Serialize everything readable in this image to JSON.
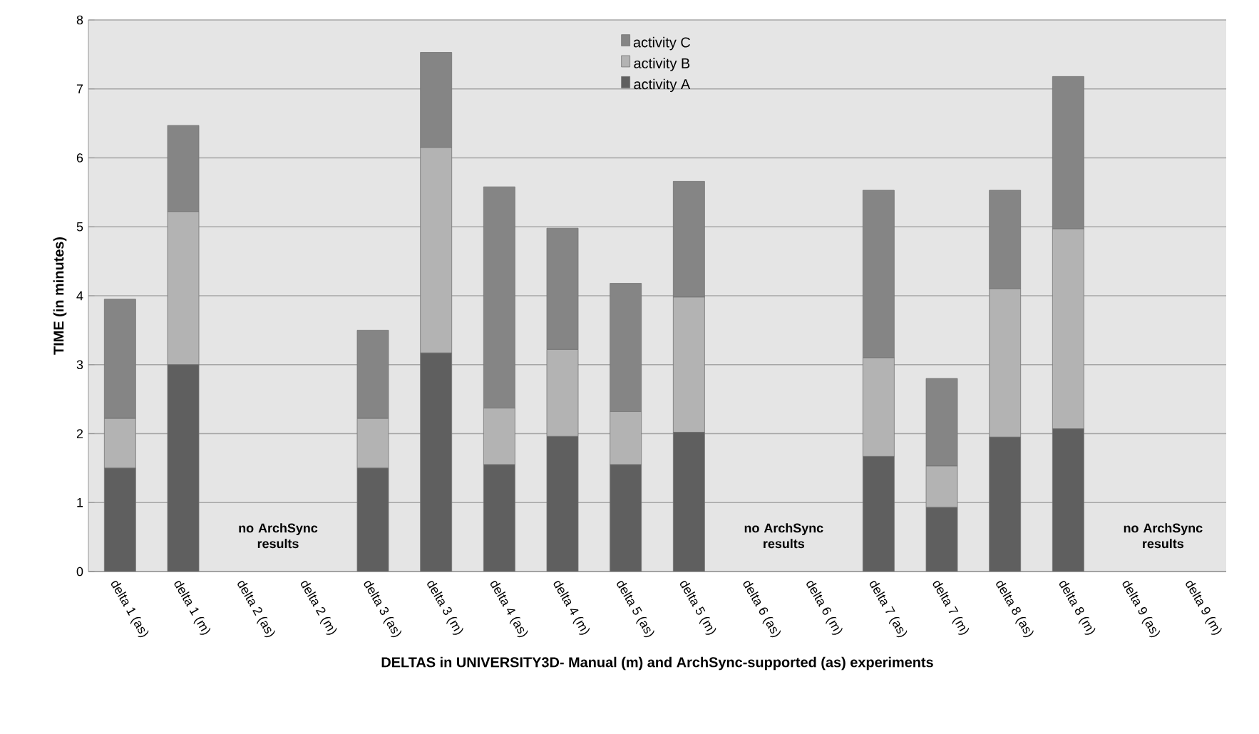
{
  "chart_data": {
    "type": "bar",
    "stacked": true,
    "xlabel": "DELTAS in UNIVERSITY3D- Manual (m) and ArchSync-supported (as) experiments",
    "ylabel": "TIME (in minutes)",
    "categories": [
      "delta 1 (as)",
      "delta 1 (m)",
      "delta 2 (as)",
      "delta 2 (m)",
      "delta 3 (as)",
      "delta 3 (m)",
      "delta 4 (as)",
      "delta 4 (m)",
      "delta 5 (as)",
      "delta 5 (m)",
      "delta 6 (as)",
      "delta 6 (m)",
      "delta 7 (as)",
      "delta 7 (m)",
      "delta 8 (as)",
      "delta 8 (m)",
      "delta 9 (as)",
      "delta 9 (m)"
    ],
    "series": [
      {
        "name": "activity A",
        "color": "#5f5f5f",
        "values": [
          1.5,
          3.0,
          null,
          null,
          1.5,
          3.17,
          1.55,
          1.96,
          1.55,
          2.02,
          null,
          null,
          1.67,
          0.93,
          1.95,
          2.07,
          null,
          null
        ]
      },
      {
        "name": "activity B",
        "color": "#b3b3b3",
        "values": [
          0.72,
          2.22,
          null,
          null,
          0.72,
          2.98,
          0.82,
          1.26,
          0.77,
          1.96,
          null,
          null,
          1.43,
          0.6,
          2.15,
          2.9,
          null,
          null
        ]
      },
      {
        "name": "activity C",
        "color": "#858585",
        "values": [
          1.73,
          1.25,
          null,
          null,
          1.28,
          1.38,
          3.21,
          1.76,
          1.86,
          1.68,
          null,
          null,
          2.43,
          1.27,
          1.43,
          2.21,
          null,
          null
        ]
      }
    ],
    "ylim": [
      0,
      8
    ],
    "yticks": [
      0,
      1,
      2,
      3,
      4,
      5,
      6,
      7,
      8
    ],
    "grid": "y",
    "legend": "top",
    "annotations": [
      "no ArchSync results",
      "no ArchSync results",
      "no ArchSync results"
    ]
  }
}
